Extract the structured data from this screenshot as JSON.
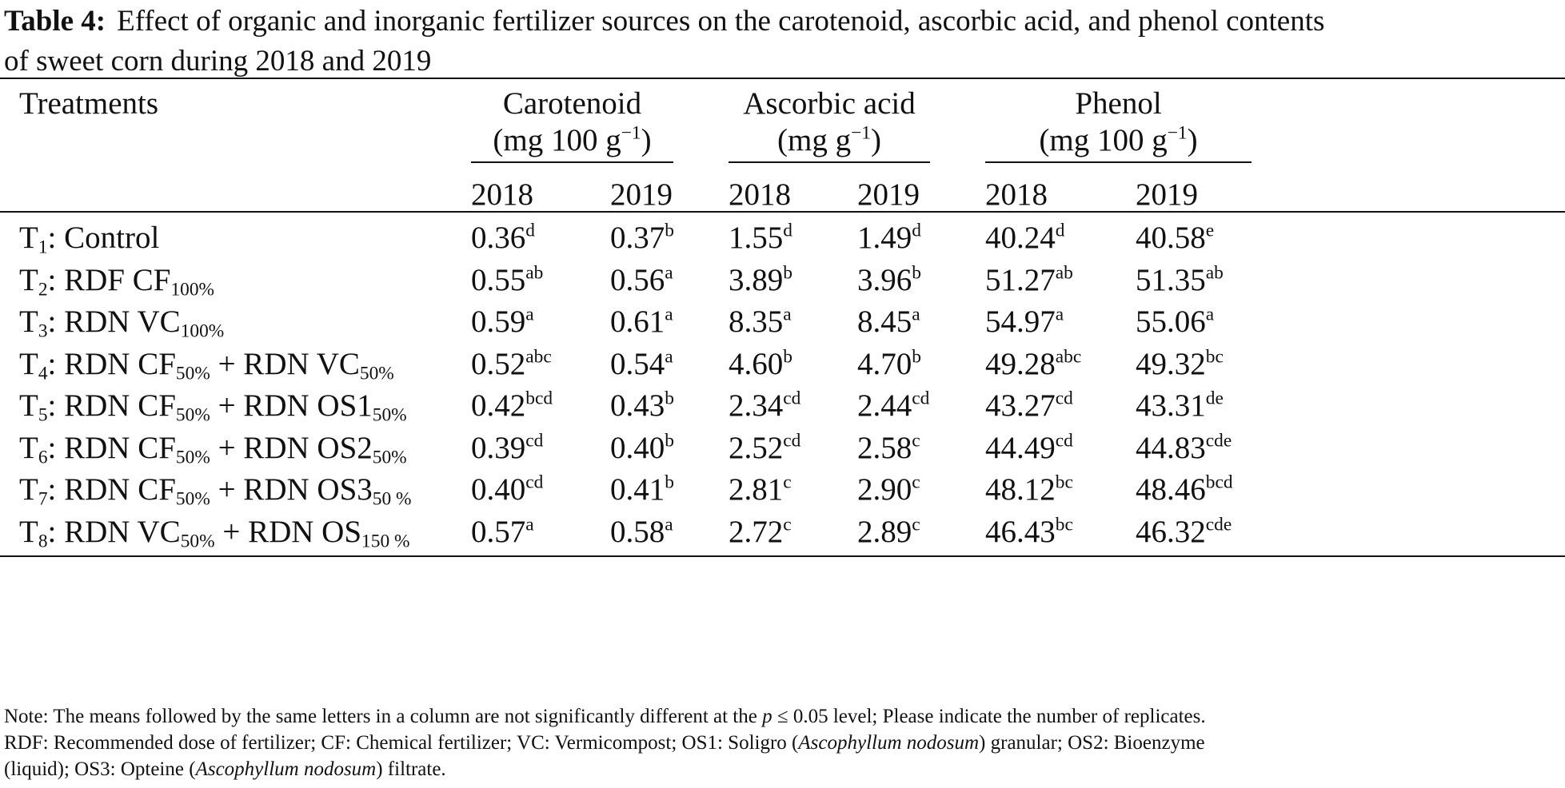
{
  "caption": {
    "label": "Table 4:",
    "text_line1": "Effect of organic and inorganic fertilizer sources on the carotenoid, ascorbic acid, and phenol contents",
    "text_line2": "of sweet corn during 2018 and 2019"
  },
  "header": {
    "treatments": "Treatments",
    "groups": [
      {
        "name": "Carotenoid",
        "unit_prefix": "(mg 100 g",
        "unit_exp": "−1",
        "unit_suffix": ")"
      },
      {
        "name": "Ascorbic acid",
        "unit_prefix": "(mg g",
        "unit_exp": "−1",
        "unit_suffix": ")"
      },
      {
        "name": "Phenol",
        "unit_prefix": "(mg 100 g",
        "unit_exp": "−1",
        "unit_suffix": ")"
      }
    ],
    "years": [
      "2018",
      "2019",
      "2018",
      "2019",
      "2018",
      "2019"
    ]
  },
  "rows": [
    {
      "label": {
        "t": "T",
        "n": "1",
        "rest": ": Control",
        "parts": []
      },
      "cells": [
        [
          "0.36",
          "d"
        ],
        [
          "0.37",
          "b"
        ],
        [
          "1.55",
          "d"
        ],
        [
          "1.49",
          "d"
        ],
        [
          "40.24",
          "d"
        ],
        [
          "40.58",
          "e"
        ]
      ]
    },
    {
      "label": {
        "t": "T",
        "n": "2",
        "rest": ": ",
        "parts": [
          [
            "RDF CF",
            "100%"
          ]
        ]
      },
      "cells": [
        [
          "0.55",
          "ab"
        ],
        [
          "0.56",
          "a"
        ],
        [
          "3.89",
          "b"
        ],
        [
          "3.96",
          "b"
        ],
        [
          "51.27",
          "ab"
        ],
        [
          "51.35",
          "ab"
        ]
      ]
    },
    {
      "label": {
        "t": "T",
        "n": "3",
        "rest": ": ",
        "parts": [
          [
            "RDN VC",
            "100%"
          ]
        ]
      },
      "cells": [
        [
          "0.59",
          "a"
        ],
        [
          "0.61",
          "a"
        ],
        [
          "8.35",
          "a"
        ],
        [
          "8.45",
          "a"
        ],
        [
          "54.97",
          "a"
        ],
        [
          "55.06",
          "a"
        ]
      ]
    },
    {
      "label": {
        "t": "T",
        "n": "4",
        "rest": ": ",
        "parts": [
          [
            "RDN CF",
            "50%"
          ],
          [
            " + RDN VC",
            "50%"
          ]
        ]
      },
      "cells": [
        [
          "0.52",
          "abc"
        ],
        [
          "0.54",
          "a"
        ],
        [
          "4.60",
          "b"
        ],
        [
          "4.70",
          "b"
        ],
        [
          "49.28",
          "abc"
        ],
        [
          "49.32",
          "bc"
        ]
      ]
    },
    {
      "label": {
        "t": "T",
        "n": "5",
        "rest": ": ",
        "parts": [
          [
            "RDN CF",
            "50%"
          ],
          [
            " + RDN OS1",
            "50%"
          ]
        ]
      },
      "cells": [
        [
          "0.42",
          "bcd"
        ],
        [
          "0.43",
          "b"
        ],
        [
          "2.34",
          "cd"
        ],
        [
          "2.44",
          "cd"
        ],
        [
          "43.27",
          "cd"
        ],
        [
          "43.31",
          "de"
        ]
      ]
    },
    {
      "label": {
        "t": "T",
        "n": "6",
        "rest": ": ",
        "parts": [
          [
            "RDN CF",
            "50%"
          ],
          [
            " + RDN OS2",
            "50%"
          ]
        ]
      },
      "cells": [
        [
          "0.39",
          "cd"
        ],
        [
          "0.40",
          "b"
        ],
        [
          "2.52",
          "cd"
        ],
        [
          "2.58",
          "c"
        ],
        [
          "44.49",
          "cd"
        ],
        [
          "44.83",
          "cde"
        ]
      ]
    },
    {
      "label": {
        "t": "T",
        "n": "7",
        "rest": ": ",
        "parts": [
          [
            "RDN CF",
            "50%"
          ],
          [
            " + RDN OS3",
            "50 %"
          ]
        ]
      },
      "cells": [
        [
          "0.40",
          "cd"
        ],
        [
          "0.41",
          "b"
        ],
        [
          "2.81",
          "c"
        ],
        [
          "2.90",
          "c"
        ],
        [
          "48.12",
          "bc"
        ],
        [
          "48.46",
          "bcd"
        ]
      ]
    },
    {
      "label": {
        "t": "T",
        "n": "8",
        "rest": ": ",
        "parts": [
          [
            "RDN VC",
            "50%"
          ],
          [
            " + RDN OS",
            "150 %"
          ]
        ]
      },
      "cells": [
        [
          "0.57",
          "a"
        ],
        [
          "0.58",
          "a"
        ],
        [
          "2.72",
          "c"
        ],
        [
          "2.89",
          "c"
        ],
        [
          "46.43",
          "bc"
        ],
        [
          "46.32",
          "cde"
        ]
      ]
    }
  ],
  "note": {
    "line1_a": "Note: The means followed by the same letters in a column are not significantly different at the ",
    "line1_p": "p",
    "line1_b": " ≤ 0.05 level; Please indicate the number of replicates.",
    "line2_a": "RDF: Recommended dose of fertilizer; CF: Chemical fertilizer; VC: Vermicompost; OS1: Soligro (",
    "line2_i": "Ascophyllum nodosum",
    "line2_b": ") granular; OS2: Bioenzyme",
    "line3_a": "(liquid); OS3: Opteine (",
    "line3_i": "Ascophyllum nodosum",
    "line3_b": ") filtrate."
  }
}
